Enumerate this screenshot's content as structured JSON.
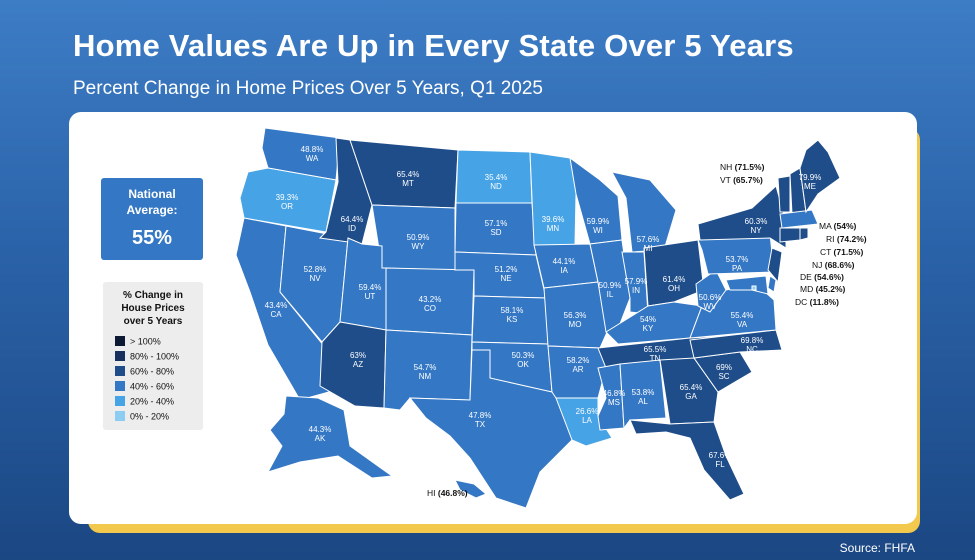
{
  "title": "Home Values Are Up in Every State Over 5 Years",
  "subtitle": "Percent Change in Home Prices Over 5 Years, Q1 2025",
  "source": "Source: FHFA",
  "national": {
    "line1": "National",
    "line2": "Average:",
    "value": "55%"
  },
  "legend": {
    "title": [
      "% Change in",
      "House Prices",
      "over 5 Years"
    ],
    "items": [
      {
        "label": "> 100%",
        "color": "#0c1a33"
      },
      {
        "label": "80% - 100%",
        "color": "#17305c"
      },
      {
        "label": "60% - 80%",
        "color": "#1e4d8a"
      },
      {
        "label": "40% - 60%",
        "color": "#3477c4"
      },
      {
        "label": "20% - 40%",
        "color": "#45a3e6"
      },
      {
        "label": "0% - 20%",
        "color": "#8dcdf2"
      }
    ]
  },
  "states": [
    {
      "abbr": "WA",
      "value": "48.8%"
    },
    {
      "abbr": "OR",
      "value": "39.3%"
    },
    {
      "abbr": "CA",
      "value": "43.4%"
    },
    {
      "abbr": "NV",
      "value": "52.8%"
    },
    {
      "abbr": "ID",
      "value": "64.4%"
    },
    {
      "abbr": "MT",
      "value": "65.4%"
    },
    {
      "abbr": "WY",
      "value": "50.9%"
    },
    {
      "abbr": "UT",
      "value": "59.4%"
    },
    {
      "abbr": "AZ",
      "value": "63%"
    },
    {
      "abbr": "CO",
      "value": "43.2%"
    },
    {
      "abbr": "NM",
      "value": "54.7%"
    },
    {
      "abbr": "ND",
      "value": "35.4%"
    },
    {
      "abbr": "SD",
      "value": "57.1%"
    },
    {
      "abbr": "NE",
      "value": "51.2%"
    },
    {
      "abbr": "KS",
      "value": "58.1%"
    },
    {
      "abbr": "OK",
      "value": "50.3%"
    },
    {
      "abbr": "TX",
      "value": "47.8%"
    },
    {
      "abbr": "MN",
      "value": "39.6%"
    },
    {
      "abbr": "IA",
      "value": "44.1%"
    },
    {
      "abbr": "MO",
      "value": "56.3%"
    },
    {
      "abbr": "AR",
      "value": "58.2%"
    },
    {
      "abbr": "LA",
      "value": "26.6%"
    },
    {
      "abbr": "WI",
      "value": "59.9%"
    },
    {
      "abbr": "IL",
      "value": "50.9%"
    },
    {
      "abbr": "MI",
      "value": "57.6%"
    },
    {
      "abbr": "IN",
      "value": "57.9%"
    },
    {
      "abbr": "OH",
      "value": "61.4%"
    },
    {
      "abbr": "KY",
      "value": "54%"
    },
    {
      "abbr": "TN",
      "value": "65.5%"
    },
    {
      "abbr": "MS",
      "value": "46.8%"
    },
    {
      "abbr": "AL",
      "value": "53.8%"
    },
    {
      "abbr": "GA",
      "value": "65.4%"
    },
    {
      "abbr": "FL",
      "value": "67.6%"
    },
    {
      "abbr": "SC",
      "value": "69%"
    },
    {
      "abbr": "NC",
      "value": "69.8%"
    },
    {
      "abbr": "VA",
      "value": "55.4%"
    },
    {
      "abbr": "WV",
      "value": "50.6%"
    },
    {
      "abbr": "PA",
      "value": "53.7%"
    },
    {
      "abbr": "NY",
      "value": "60.3%"
    },
    {
      "abbr": "ME",
      "value": "79.9%"
    },
    {
      "abbr": "AK",
      "value": "44.3%"
    }
  ],
  "callouts": [
    {
      "abbr": "NH",
      "value": "(71.5%)"
    },
    {
      "abbr": "VT",
      "value": "(65.7%)"
    },
    {
      "abbr": "MA",
      "value": "(54%)"
    },
    {
      "abbr": "RI",
      "value": "(74.2%)"
    },
    {
      "abbr": "CT",
      "value": "(71.5%)"
    },
    {
      "abbr": "NJ",
      "value": "(68.6%)"
    },
    {
      "abbr": "DE",
      "value": "(54.6%)"
    },
    {
      "abbr": "MD",
      "value": "(45.2%)"
    },
    {
      "abbr": "DC",
      "value": "(11.8%)"
    },
    {
      "abbr": "HI",
      "value": "(46.8%)"
    }
  ]
}
